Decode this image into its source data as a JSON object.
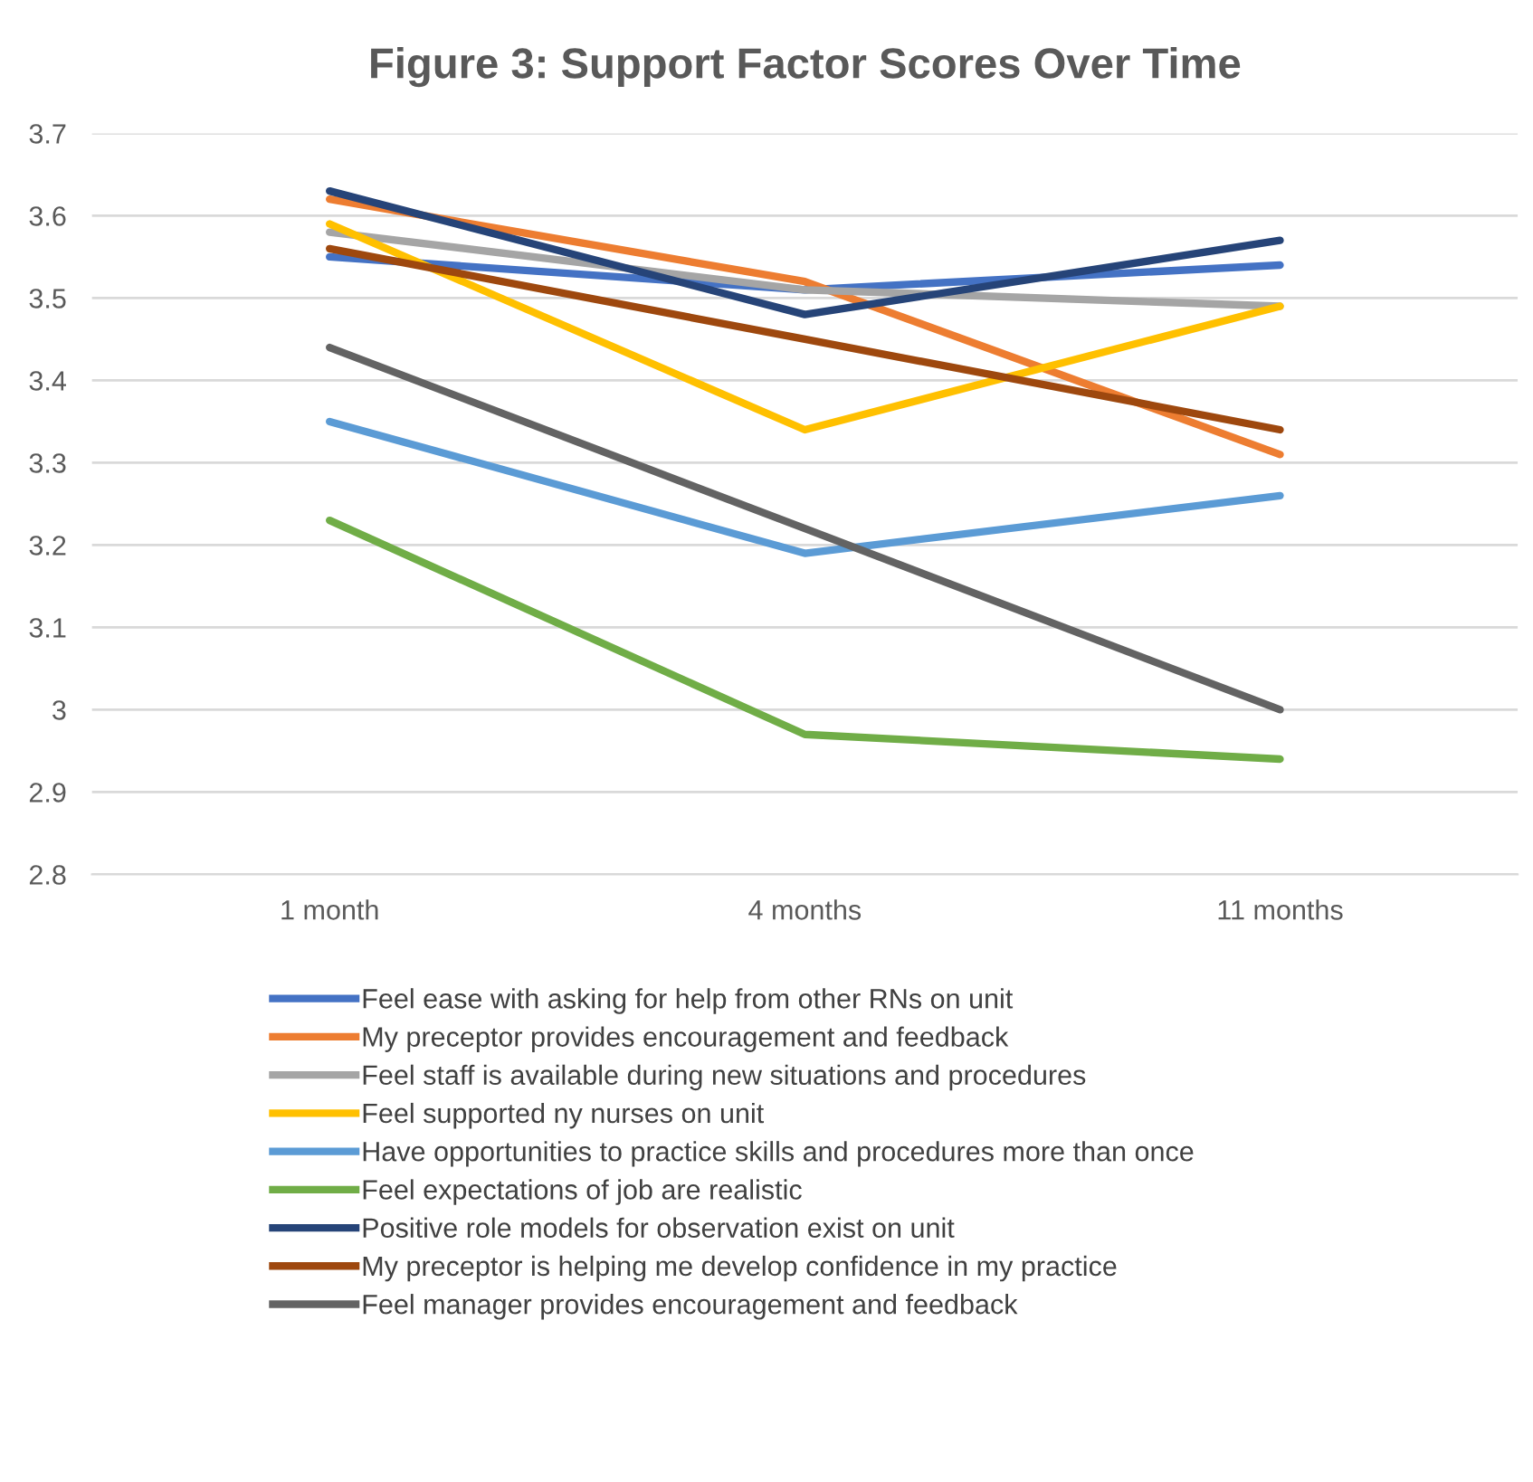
{
  "chart_data": {
    "type": "line",
    "title": "Figure 3: Support Factor Scores Over Time",
    "categories": [
      "1 month",
      "4 months",
      "11 months"
    ],
    "ylim": [
      2.8,
      3.7
    ],
    "yticks": [
      {
        "value": 2.8,
        "label": "2.8"
      },
      {
        "value": 2.9,
        "label": "2.9"
      },
      3,
      {
        "value": 3.1,
        "label": "3.1"
      },
      {
        "value": 3.2,
        "label": "3.2"
      },
      {
        "value": 3.3,
        "label": "3.3"
      },
      {
        "value": 3.4,
        "label": "3.4"
      },
      {
        "value": 3.5,
        "label": "3.5"
      },
      {
        "value": 3.6,
        "label": "3.6"
      },
      {
        "value": 3.7,
        "label": "3.7"
      }
    ],
    "grid": "y",
    "legend": "bottom",
    "marker": "none",
    "line_style": "solid",
    "series": [
      {
        "name": "Feel ease with asking for help from other RNs on unit",
        "color": "#4472c4",
        "values": [
          3.55,
          3.51,
          3.54
        ]
      },
      {
        "name": "My preceptor provides encouragement and feedback",
        "color": "#ed7d31",
        "values": [
          3.62,
          3.52,
          3.31
        ]
      },
      {
        "name": "Feel staff is available during new situations and procedures",
        "color": "#a5a5a5",
        "values": [
          3.58,
          3.51,
          3.49
        ]
      },
      {
        "name": "Feel supported ny nurses on unit",
        "color": "#ffc000",
        "values": [
          3.59,
          3.34,
          3.49
        ]
      },
      {
        "name": "Have opportunities to practice skills and procedures more than once",
        "color": "#5b9bd5",
        "values": [
          3.35,
          3.19,
          3.26
        ]
      },
      {
        "name": "Feel expectations of job are realistic",
        "color": "#70ad47",
        "values": [
          3.23,
          2.97,
          2.94
        ]
      },
      {
        "name": "Positive role models for observation exist on unit",
        "color": "#264478",
        "values": [
          3.63,
          3.48,
          3.57
        ]
      },
      {
        "name": "My preceptor is helping me develop confidence in my practice",
        "color": "#9e480e",
        "values": [
          3.56,
          3.45,
          3.34
        ]
      },
      {
        "name": "Feel manager provides encouragement and feedback",
        "color": "#636363",
        "values": [
          3.44,
          3.22,
          3.0
        ]
      }
    ]
  }
}
